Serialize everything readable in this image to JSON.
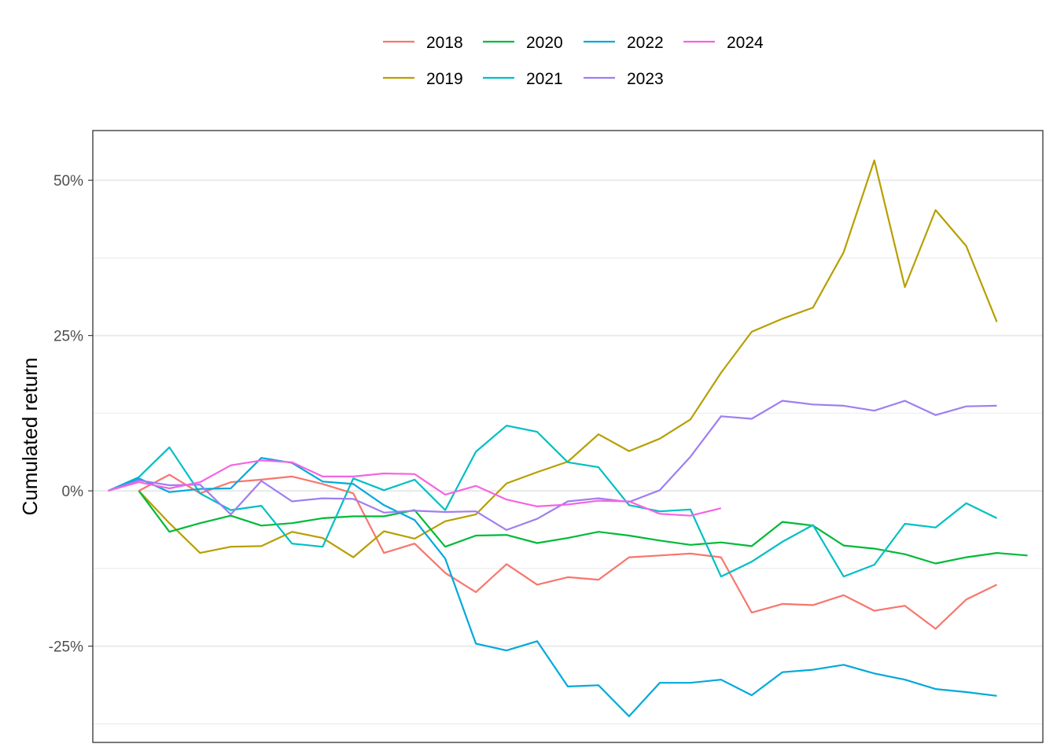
{
  "chart_data": {
    "type": "line",
    "xlabel": "",
    "ylabel": "Cumulated return",
    "ylim": [
      -0.405,
      0.58
    ],
    "y_ticks": [
      {
        "value": 0.5,
        "label": "50%"
      },
      {
        "value": 0.25,
        "label": "25%"
      },
      {
        "value": 0.0,
        "label": "0%"
      },
      {
        "value": -0.25,
        "label": "-25%"
      }
    ],
    "y_minor_ticks": [
      0.375,
      0.125,
      -0.125,
      -0.375
    ],
    "x_range": [
      -0.5,
      30.5
    ],
    "grid": true,
    "legend_position": "top",
    "series": [
      {
        "name": "2018",
        "color": "#F8766D",
        "start": 1,
        "values": [
          0.0,
          0.026,
          -0.004,
          0.014,
          0.018,
          0.023,
          0.011,
          -0.004,
          -0.1,
          -0.085,
          -0.132,
          -0.163,
          -0.118,
          -0.151,
          -0.139,
          -0.143,
          -0.107,
          -0.104,
          -0.101,
          -0.107,
          -0.196,
          -0.182,
          -0.184,
          -0.168,
          -0.193,
          -0.185,
          -0.222,
          -0.175,
          -0.151
        ]
      },
      {
        "name": "2019",
        "color": "#B79F00",
        "start": 1,
        "values": [
          0.0,
          -0.052,
          -0.1,
          -0.09,
          -0.089,
          -0.066,
          -0.076,
          -0.107,
          -0.065,
          -0.077,
          -0.049,
          -0.038,
          0.012,
          0.03,
          0.047,
          0.091,
          0.064,
          0.084,
          0.115,
          0.19,
          0.256,
          0.277,
          0.295,
          0.384,
          0.532,
          0.328,
          0.452,
          0.394,
          0.272
        ]
      },
      {
        "name": "2020",
        "color": "#00BA38",
        "start": 1,
        "values": [
          0.0,
          -0.066,
          -0.052,
          -0.04,
          -0.056,
          -0.052,
          -0.044,
          -0.041,
          -0.041,
          -0.031,
          -0.09,
          -0.072,
          -0.071,
          -0.084,
          -0.076,
          -0.066,
          -0.072,
          -0.08,
          -0.087,
          -0.083,
          -0.089,
          -0.05,
          -0.056,
          -0.088,
          -0.093,
          -0.102,
          -0.117,
          -0.107,
          -0.1,
          -0.104
        ]
      },
      {
        "name": "2021",
        "color": "#00BFC4",
        "start": 0,
        "values": [
          0.0,
          0.022,
          0.07,
          -0.004,
          -0.031,
          -0.024,
          -0.085,
          -0.09,
          0.02,
          0.001,
          0.018,
          -0.031,
          0.063,
          0.105,
          0.095,
          0.046,
          0.038,
          -0.023,
          -0.033,
          -0.03,
          -0.138,
          -0.114,
          -0.082,
          -0.055,
          -0.138,
          -0.119,
          -0.053,
          -0.059,
          -0.02,
          -0.044
        ]
      },
      {
        "name": "2022",
        "color": "#00A9DB",
        "start": 0,
        "values": [
          0.0,
          0.02,
          -0.002,
          0.003,
          0.004,
          0.053,
          0.045,
          0.015,
          0.011,
          -0.023,
          -0.047,
          -0.109,
          -0.246,
          -0.257,
          -0.242,
          -0.315,
          -0.313,
          -0.363,
          -0.309,
          -0.309,
          -0.304,
          -0.329,
          -0.292,
          -0.288,
          -0.28,
          -0.294,
          -0.304,
          -0.319,
          -0.324,
          -0.33
        ]
      },
      {
        "name": "2023",
        "color": "#9F7EF0",
        "start": 0,
        "values": [
          0.0,
          0.017,
          0.009,
          0.01,
          -0.038,
          0.016,
          -0.017,
          -0.012,
          -0.013,
          -0.035,
          -0.032,
          -0.034,
          -0.033,
          -0.063,
          -0.045,
          -0.017,
          -0.012,
          -0.018,
          0.001,
          0.055,
          0.12,
          0.116,
          0.145,
          0.139,
          0.137,
          0.129,
          0.145,
          0.122,
          0.136,
          0.137
        ]
      },
      {
        "name": "2024",
        "color": "#F564E3",
        "start": 0,
        "values": [
          0.0,
          0.014,
          0.004,
          0.014,
          0.041,
          0.049,
          0.046,
          0.023,
          0.023,
          0.028,
          0.027,
          -0.006,
          0.008,
          -0.014,
          -0.025,
          -0.022,
          -0.016,
          -0.017,
          -0.037,
          -0.04,
          -0.028
        ]
      }
    ]
  }
}
